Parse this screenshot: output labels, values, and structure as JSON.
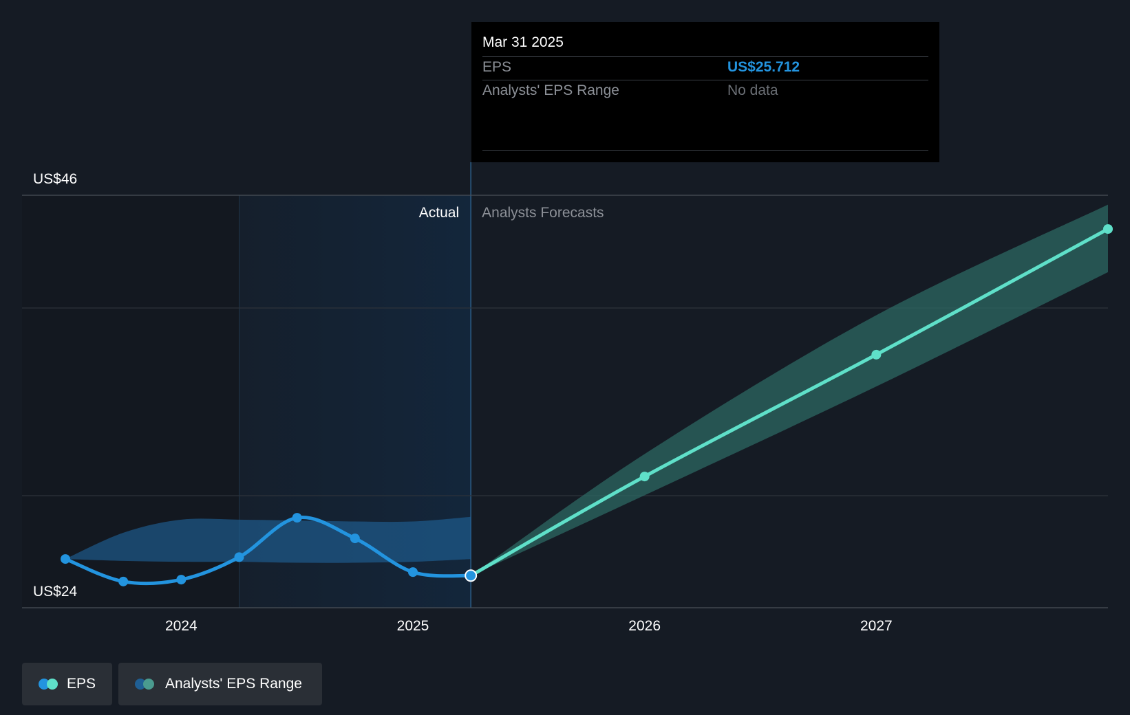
{
  "chart_data": {
    "type": "line",
    "title": "EPS",
    "y_labels": {
      "top": "US$46",
      "bottom": "US$24"
    },
    "ylim": [
      24,
      46
    ],
    "x_ticks": [
      "2024",
      "2025",
      "2026",
      "2027"
    ],
    "sections": {
      "actual": "Actual",
      "forecast": "Analysts Forecasts"
    },
    "series": [
      {
        "name": "EPS (actual)",
        "color": "#2394df",
        "x": [
          2023.5,
          2023.75,
          2024.0,
          2024.25,
          2024.5,
          2024.75,
          2025.0,
          2025.25
        ],
        "values": [
          26.6,
          25.4,
          25.5,
          26.7,
          28.8,
          27.7,
          25.9,
          25.712
        ]
      },
      {
        "name": "EPS (forecast)",
        "color": "#5fe0c9",
        "x": [
          2025.25,
          2026.0,
          2027.0,
          2028.0
        ],
        "values": [
          25.712,
          31.0,
          37.5,
          44.2
        ]
      }
    ],
    "range_bands": [
      {
        "name": "Analysts' EPS Range (historical)",
        "color": "#1f5f94",
        "x": [
          2023.5,
          2023.75,
          2024.0,
          2024.25,
          2024.5,
          2024.75,
          2025.0,
          2025.25
        ],
        "low": [
          26.6,
          26.5,
          26.45,
          26.45,
          26.4,
          26.4,
          26.45,
          26.6
        ],
        "high": [
          26.6,
          28.0,
          28.7,
          28.7,
          28.65,
          28.6,
          28.6,
          28.85
        ]
      },
      {
        "name": "Analysts' EPS Range (forecast)",
        "color": "#2e6c66",
        "x": [
          2025.25,
          2026.0,
          2027.0,
          2028.0
        ],
        "low": [
          25.712,
          30.0,
          35.8,
          41.9
        ],
        "high": [
          25.712,
          32.2,
          39.6,
          45.5
        ]
      }
    ],
    "tooltip": {
      "date": "Mar 31 2025",
      "rows": [
        {
          "label": "EPS",
          "value": "US$25.712"
        },
        {
          "label": "Analysts' EPS Range",
          "value": "No data"
        }
      ]
    },
    "legend": [
      {
        "label": "EPS",
        "colors": [
          "#2394df",
          "#5fe0c9"
        ]
      },
      {
        "label": "Analysts' EPS Range",
        "colors": [
          "#1f5f94",
          "#4a9b8f"
        ]
      }
    ]
  }
}
